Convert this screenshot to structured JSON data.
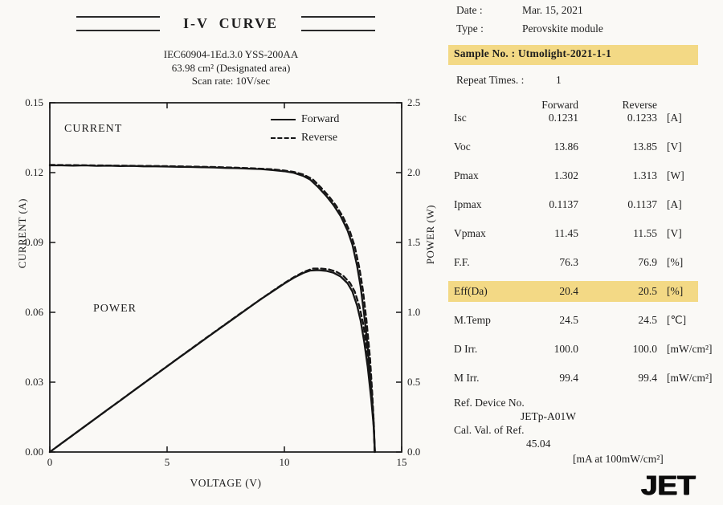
{
  "header": {
    "title": "I-V  CURVE",
    "subtitle_lines": [
      "IEC60904-1Ed.3.0 YSS-200AA",
      "63.98 cm² (Designated area)",
      "Scan rate: 10V/sec"
    ]
  },
  "info": {
    "date_label": "Date :",
    "date_value": "Mar. 15, 2021",
    "type_label": "Type :",
    "type_value": "Perovskite module",
    "sample_text": "Sample No. : Utmolight-2021-1-1",
    "repeat_label": "Repeat Times. :",
    "repeat_value": "1"
  },
  "results_table": {
    "col_headers": [
      "Forward",
      "Reverse"
    ],
    "rows": [
      {
        "param": "Isc",
        "forward": "0.1231",
        "reverse": "0.1233",
        "unit": "[A]",
        "highlight": false
      },
      {
        "param": "Voc",
        "forward": "13.86",
        "reverse": "13.85",
        "unit": "[V]",
        "highlight": false
      },
      {
        "param": "Pmax",
        "forward": "1.302",
        "reverse": "1.313",
        "unit": "[W]",
        "highlight": false
      },
      {
        "param": "Ipmax",
        "forward": "0.1137",
        "reverse": "0.1137",
        "unit": "[A]",
        "highlight": false
      },
      {
        "param": "Vpmax",
        "forward": "11.45",
        "reverse": "11.55",
        "unit": "[V]",
        "highlight": false
      },
      {
        "param": "F.F.",
        "forward": "76.3",
        "reverse": "76.9",
        "unit": "[%]",
        "highlight": false
      },
      {
        "param": "Eff(Da)",
        "forward": "20.4",
        "reverse": "20.5",
        "unit": "[%]",
        "highlight": true
      },
      {
        "param": "M.Temp",
        "forward": "24.5",
        "reverse": "24.5",
        "unit": "[℃]",
        "highlight": false
      },
      {
        "param": "D Irr.",
        "forward": "100.0",
        "reverse": "100.0",
        "unit": "[mW/cm²]",
        "highlight": false
      },
      {
        "param": "M Irr.",
        "forward": "99.4",
        "reverse": "99.4",
        "unit": "[mW/cm²]",
        "highlight": false
      }
    ]
  },
  "reference": {
    "device_label": "Ref. Device No.",
    "device_value": "JETp-A01W",
    "cal_label": "Cal. Val. of Ref.",
    "cal_value": "45.04",
    "cal_unit": "[mA at 100mW/cm²]"
  },
  "logo_text": "JET",
  "colors": {
    "highlight": "#f3d985",
    "line": "#161616",
    "paper": "#faf9f6"
  },
  "chart_data": {
    "type": "line",
    "title": "I-V CURVE",
    "xlabel": "VOLTAGE (V)",
    "ylabel_left": "CURRENT (A)",
    "ylabel_right": "POWER (W)",
    "xlim": [
      0,
      15
    ],
    "ylim_left": [
      0,
      0.15
    ],
    "ylim_right": [
      0,
      2.5
    ],
    "x_tick_labels": [
      "0",
      "5",
      "10",
      "15"
    ],
    "x_ticks": [
      0,
      5,
      10,
      15
    ],
    "y_ticks_left": [
      "0.15",
      "0.12",
      "0.09",
      "0.06",
      "0.03",
      "0.00"
    ],
    "y_ticks_right": [
      "2.5",
      "2.0",
      "1.5",
      "1.0",
      "0.5",
      "0.0"
    ],
    "grid": false,
    "legend_position": "top-right-inside",
    "legend": [
      {
        "label": "Forward",
        "style": "solid"
      },
      {
        "label": "Reverse",
        "style": "dashed"
      }
    ],
    "annotations": [
      "CURRENT",
      "POWER"
    ],
    "series": [
      {
        "name": "Current Forward",
        "axis": "left",
        "style": "solid",
        "points": [
          [
            0,
            0.1231
          ],
          [
            0.5,
            0.1231
          ],
          [
            1,
            0.123
          ],
          [
            1.5,
            0.1231
          ],
          [
            2,
            0.1229
          ],
          [
            2.5,
            0.123
          ],
          [
            3,
            0.1228
          ],
          [
            3.5,
            0.1229
          ],
          [
            4,
            0.1227
          ],
          [
            4.5,
            0.1227
          ],
          [
            5,
            0.1226
          ],
          [
            5.5,
            0.1225
          ],
          [
            6,
            0.1224
          ],
          [
            6.5,
            0.1223
          ],
          [
            7,
            0.1222
          ],
          [
            7.5,
            0.122
          ],
          [
            8,
            0.1219
          ],
          [
            8.5,
            0.1217
          ],
          [
            9,
            0.1215
          ],
          [
            9.5,
            0.1211
          ],
          [
            10,
            0.1206
          ],
          [
            10.4,
            0.1199
          ],
          [
            10.8,
            0.1186
          ],
          [
            11.1,
            0.117
          ],
          [
            11.45,
            0.1137
          ],
          [
            11.8,
            0.1098
          ],
          [
            12.1,
            0.106
          ],
          [
            12.4,
            0.1013
          ],
          [
            12.7,
            0.095
          ],
          [
            12.9,
            0.089
          ],
          [
            13.1,
            0.08
          ],
          [
            13.25,
            0.071
          ],
          [
            13.4,
            0.059
          ],
          [
            13.55,
            0.045
          ],
          [
            13.7,
            0.028
          ],
          [
            13.8,
            0.014
          ],
          [
            13.86,
            0
          ]
        ]
      },
      {
        "name": "Current Reverse",
        "axis": "left",
        "style": "dashed",
        "points": [
          [
            0,
            0.1233
          ],
          [
            1,
            0.1232
          ],
          [
            2,
            0.1231
          ],
          [
            3,
            0.123
          ],
          [
            4,
            0.1229
          ],
          [
            5,
            0.1228
          ],
          [
            6,
            0.1226
          ],
          [
            7,
            0.1224
          ],
          [
            8,
            0.1221
          ],
          [
            9,
            0.1217
          ],
          [
            9.5,
            0.1214
          ],
          [
            10,
            0.1209
          ],
          [
            10.4,
            0.1203
          ],
          [
            10.8,
            0.1192
          ],
          [
            11.2,
            0.1172
          ],
          [
            11.55,
            0.1137
          ],
          [
            11.9,
            0.1098
          ],
          [
            12.2,
            0.1059
          ],
          [
            12.5,
            0.101
          ],
          [
            12.8,
            0.0945
          ],
          [
            13,
            0.0883
          ],
          [
            13.2,
            0.079
          ],
          [
            13.35,
            0.0695
          ],
          [
            13.5,
            0.0565
          ],
          [
            13.65,
            0.0405
          ],
          [
            13.75,
            0.0245
          ],
          [
            13.82,
            0.011
          ],
          [
            13.85,
            0
          ]
        ]
      },
      {
        "name": "Power Forward",
        "axis": "right",
        "style": "solid",
        "points": [
          [
            0,
            0
          ],
          [
            0.5,
            0.062
          ],
          [
            1,
            0.123
          ],
          [
            1.5,
            0.185
          ],
          [
            2,
            0.246
          ],
          [
            2.5,
            0.308
          ],
          [
            3,
            0.368
          ],
          [
            3.5,
            0.43
          ],
          [
            4,
            0.491
          ],
          [
            4.5,
            0.552
          ],
          [
            5,
            0.613
          ],
          [
            5.5,
            0.674
          ],
          [
            6,
            0.734
          ],
          [
            6.5,
            0.795
          ],
          [
            7,
            0.855
          ],
          [
            7.5,
            0.915
          ],
          [
            8,
            0.975
          ],
          [
            8.5,
            1.035
          ],
          [
            9,
            1.094
          ],
          [
            9.5,
            1.15
          ],
          [
            10,
            1.206
          ],
          [
            10.4,
            1.247
          ],
          [
            10.8,
            1.281
          ],
          [
            11.1,
            1.299
          ],
          [
            11.45,
            1.302
          ],
          [
            11.8,
            1.296
          ],
          [
            12.1,
            1.283
          ],
          [
            12.4,
            1.256
          ],
          [
            12.7,
            1.207
          ],
          [
            12.9,
            1.148
          ],
          [
            13.1,
            1.048
          ],
          [
            13.25,
            0.941
          ],
          [
            13.4,
            0.791
          ],
          [
            13.55,
            0.61
          ],
          [
            13.7,
            0.384
          ],
          [
            13.8,
            0.193
          ],
          [
            13.86,
            0
          ]
        ]
      },
      {
        "name": "Power Reverse",
        "axis": "right",
        "style": "dashed",
        "points": [
          [
            0,
            0
          ],
          [
            1,
            0.123
          ],
          [
            2,
            0.246
          ],
          [
            3,
            0.369
          ],
          [
            4,
            0.492
          ],
          [
            5,
            0.614
          ],
          [
            6,
            0.736
          ],
          [
            7,
            0.857
          ],
          [
            8,
            0.977
          ],
          [
            9,
            1.095
          ],
          [
            9.5,
            1.153
          ],
          [
            10,
            1.209
          ],
          [
            10.4,
            1.251
          ],
          [
            10.8,
            1.287
          ],
          [
            11.2,
            1.313
          ],
          [
            11.55,
            1.313
          ],
          [
            11.9,
            1.307
          ],
          [
            12.2,
            1.292
          ],
          [
            12.5,
            1.263
          ],
          [
            12.8,
            1.21
          ],
          [
            13,
            1.148
          ],
          [
            13.2,
            1.043
          ],
          [
            13.35,
            0.928
          ],
          [
            13.5,
            0.763
          ],
          [
            13.65,
            0.553
          ],
          [
            13.75,
            0.337
          ],
          [
            13.82,
            0.152
          ],
          [
            13.85,
            0
          ]
        ]
      }
    ]
  }
}
